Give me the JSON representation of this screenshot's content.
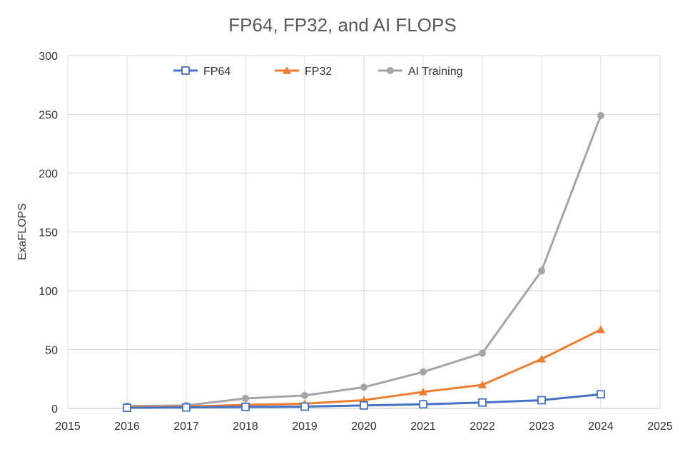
{
  "chart_data": {
    "type": "line",
    "title": "FP64, FP32, and AI FLOPS",
    "xlabel": "",
    "ylabel": "ExaFLOPS",
    "xlim": [
      2015,
      2025
    ],
    "ylim": [
      0,
      300
    ],
    "x_ticks": [
      2015,
      2016,
      2017,
      2018,
      2019,
      2020,
      2021,
      2022,
      2023,
      2024,
      2025
    ],
    "y_ticks": [
      0,
      50,
      100,
      150,
      200,
      250,
      300
    ],
    "grid": true,
    "legend_position": "top",
    "x": [
      2016,
      2017,
      2018,
      2019,
      2020,
      2021,
      2022,
      2023,
      2024
    ],
    "series": [
      {
        "name": "FP64",
        "color": "#4472C4",
        "marker": "square-open",
        "values": [
          0.5,
          0.8,
          1.3,
          1.5,
          2.5,
          3.5,
          5,
          7,
          12
        ]
      },
      {
        "name": "FP32",
        "color": "#ED7D31",
        "marker": "triangle",
        "values": [
          1,
          1.5,
          3,
          4,
          7,
          14,
          20,
          42,
          67
        ]
      },
      {
        "name": "AI Training",
        "color": "#A5A5A5",
        "marker": "circle",
        "values": [
          2,
          2.5,
          8.5,
          11,
          18,
          31,
          47,
          117,
          249
        ]
      }
    ]
  }
}
